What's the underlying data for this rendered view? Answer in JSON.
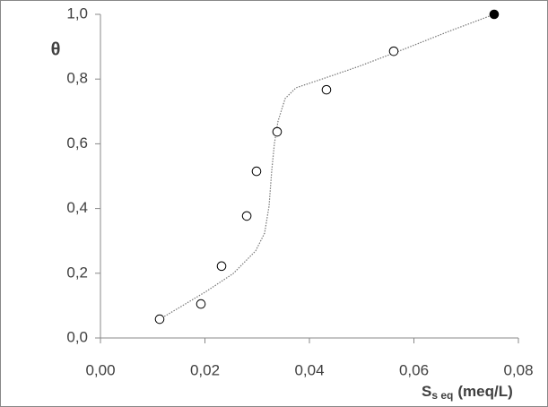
{
  "chart_data": {
    "type": "scatter",
    "ylabel": "θ",
    "xlabel": {
      "main": "S",
      "sub": "s eq",
      "unit": "(meq/L)"
    },
    "xlim": [
      0,
      0.08
    ],
    "ylim": [
      0,
      1.0
    ],
    "xticks": [
      {
        "value": 0,
        "label": "0,00"
      },
      {
        "value": 0.02,
        "label": "0,02"
      },
      {
        "value": 0.04,
        "label": "0,04"
      },
      {
        "value": 0.06,
        "label": "0,06"
      },
      {
        "value": 0.08,
        "label": "0,08"
      }
    ],
    "yticks": [
      {
        "value": 0,
        "label": "0,0"
      },
      {
        "value": 0.2,
        "label": "0,2"
      },
      {
        "value": 0.4,
        "label": "0,4"
      },
      {
        "value": 0.6,
        "label": "0,6"
      },
      {
        "value": 0.8,
        "label": "0,8"
      },
      {
        "value": 1.0,
        "label": "1,0"
      }
    ],
    "series": [
      {
        "style": "open-markers",
        "color": "#000000",
        "x": [
          0.01133,
          0.01923,
          0.02318,
          0.028,
          0.02987,
          0.03382,
          0.04326,
          0.05614
        ],
        "values": [
          0.058,
          0.105,
          0.222,
          0.377,
          0.515,
          0.637,
          0.767,
          0.886
        ]
      },
      {
        "style": "filled-markers",
        "color": "#000000",
        "x": [
          0.07536
        ],
        "values": [
          1.0
        ]
      },
      {
        "style": "dotted-line",
        "color": "#777777",
        "x": [
          0.01133,
          0.01511,
          0.02026,
          0.02541,
          0.0297,
          0.03142,
          0.03227,
          0.03279,
          0.0333,
          0.03399,
          0.03536,
          0.03742,
          0.04258,
          0.04944,
          0.05803,
          0.06661,
          0.07536
        ],
        "values": [
          0.058,
          0.094,
          0.144,
          0.199,
          0.269,
          0.324,
          0.407,
          0.518,
          0.601,
          0.67,
          0.74,
          0.773,
          0.801,
          0.839,
          0.892,
          0.947,
          1.0
        ]
      }
    ]
  }
}
